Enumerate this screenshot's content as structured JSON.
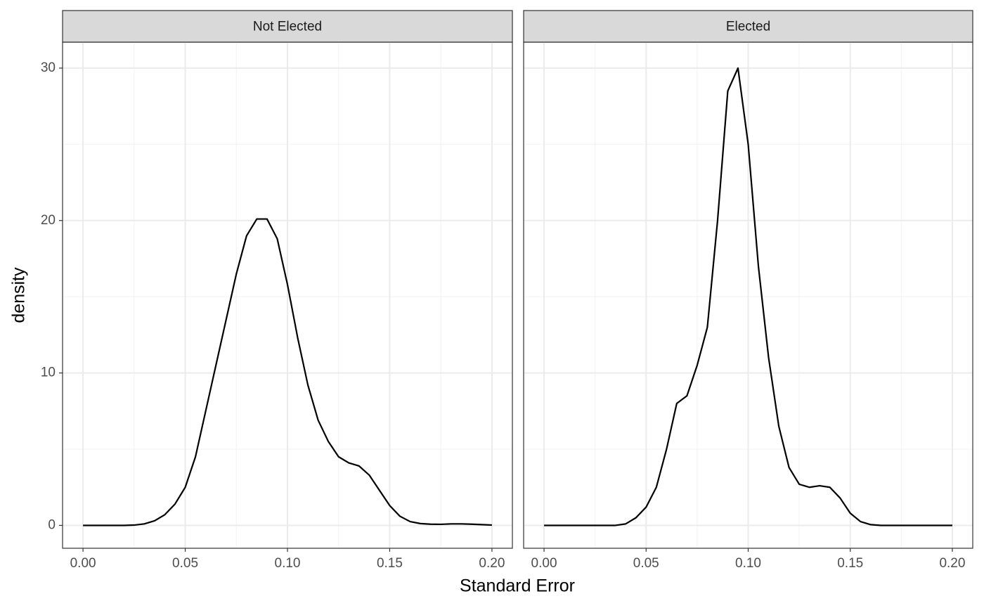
{
  "chart_data": [
    {
      "type": "line",
      "title": "Not Elected",
      "x_label": "Standard Error",
      "y_label": "density",
      "x": [
        0,
        0.005,
        0.01,
        0.015,
        0.02,
        0.025,
        0.03,
        0.035,
        0.04,
        0.045,
        0.05,
        0.055,
        0.06,
        0.065,
        0.07,
        0.075,
        0.08,
        0.085,
        0.09,
        0.095,
        0.1,
        0.105,
        0.11,
        0.115,
        0.12,
        0.125,
        0.13,
        0.135,
        0.14,
        0.145,
        0.15,
        0.155,
        0.16,
        0.165,
        0.17,
        0.175,
        0.18,
        0.185,
        0.19,
        0.195,
        0.2
      ],
      "values": [
        0,
        0,
        0,
        0,
        0,
        0.02,
        0.1,
        0.3,
        0.7,
        1.4,
        2.5,
        4.5,
        7.5,
        10.5,
        13.5,
        16.5,
        19,
        20.1,
        20.1,
        18.8,
        15.8,
        12.3,
        9.2,
        6.9,
        5.5,
        4.5,
        4.1,
        3.9,
        3.3,
        2.3,
        1.3,
        0.6,
        0.25,
        0.12,
        0.08,
        0.07,
        0.1,
        0.1,
        0.08,
        0.05,
        0.02
      ],
      "color": "#000000",
      "xlim": [
        -0.01,
        0.21
      ],
      "ylim": [
        -1.5,
        31.7
      ],
      "xticks": [
        {
          "value": 0,
          "label": "0.00"
        },
        0.05,
        {
          "value": 0.1,
          "label": "0.10"
        },
        0.15,
        {
          "value": 0.2,
          "label": "0.20"
        }
      ],
      "x_minor_ticks": [
        0.025,
        0.075,
        0.125,
        0.175
      ],
      "yticks": [
        0,
        10,
        20,
        30
      ],
      "y_minor_ticks": [
        5,
        15,
        25
      ],
      "grid": true
    },
    {
      "type": "line",
      "title": "Elected",
      "x": [
        0,
        0.005,
        0.01,
        0.015,
        0.02,
        0.025,
        0.03,
        0.035,
        0.04,
        0.045,
        0.05,
        0.055,
        0.06,
        0.065,
        0.07,
        0.075,
        0.08,
        0.085,
        0.09,
        0.095,
        0.1,
        0.105,
        0.11,
        0.115,
        0.12,
        0.125,
        0.13,
        0.135,
        0.14,
        0.145,
        0.15,
        0.155,
        0.16,
        0.165,
        0.17,
        0.175,
        0.18,
        0.185,
        0.19,
        0.195,
        0.2
      ],
      "values": [
        0,
        0,
        0,
        0,
        0,
        0,
        0,
        0,
        0.1,
        0.5,
        1.2,
        2.5,
        5,
        8,
        8.5,
        10.5,
        13,
        20,
        28.5,
        30,
        25,
        17,
        11,
        6.5,
        3.8,
        2.7,
        2.5,
        2.6,
        2.5,
        1.8,
        0.8,
        0.25,
        0.05,
        0,
        0,
        0,
        0,
        0,
        0,
        0,
        0
      ],
      "color": "#000000",
      "xlim": [
        -0.01,
        0.21
      ],
      "ylim": [
        -1.5,
        31.7
      ],
      "xticks": [
        {
          "value": 0,
          "label": "0.00"
        },
        0.05,
        {
          "value": 0.1,
          "label": "0.10"
        },
        0.15,
        {
          "value": 0.2,
          "label": "0.20"
        }
      ],
      "x_minor_ticks": [
        0.025,
        0.075,
        0.125,
        0.175
      ],
      "yticks": [
        0,
        10,
        20,
        30
      ],
      "y_minor_ticks": [
        5,
        15,
        25
      ],
      "grid": true
    }
  ]
}
